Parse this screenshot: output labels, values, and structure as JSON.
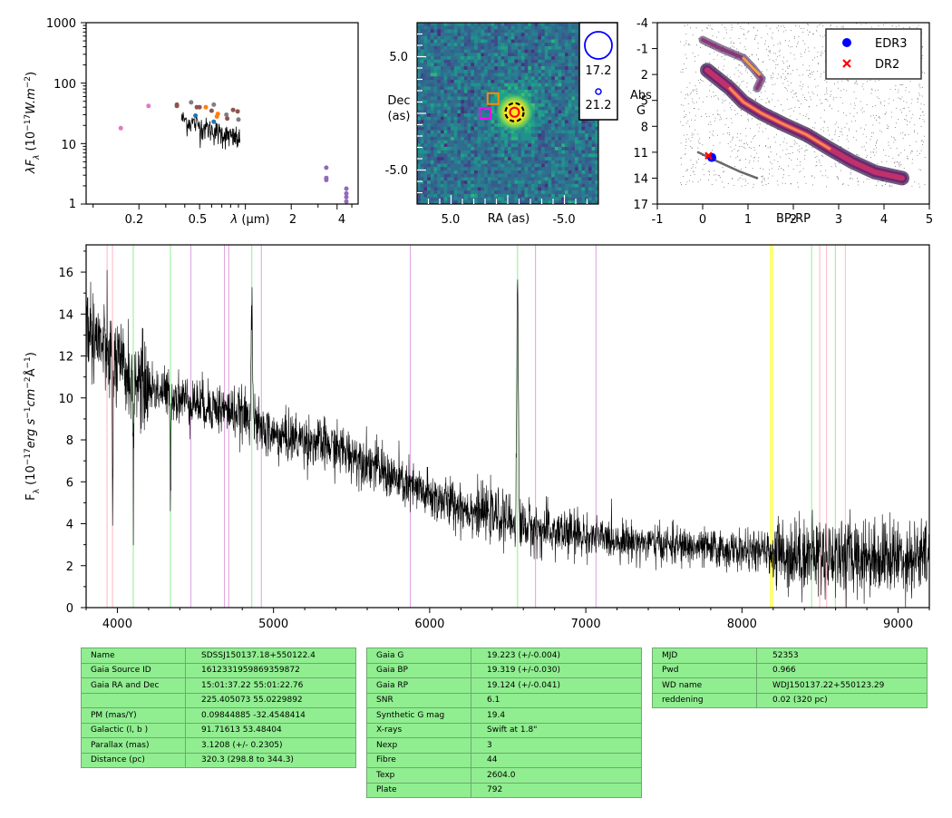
{
  "colors": {
    "spectrum": "#000000",
    "table_bg": "#90ee90",
    "edr3": "#0000ff",
    "dr2": "#ff0000",
    "sed_blue": "#1f77b4",
    "sed_orange": "#ff7f0e",
    "sed_brown": "#8c564b",
    "sed_pink": "#e377c2",
    "sed_purple": "#9467bd",
    "sed_gray": "#7f7f7f",
    "line_pink": "#ffb6c1",
    "line_green": "#90ee90",
    "line_violet": "#dda0dd",
    "line_yellow": "#ffff00"
  },
  "chart_data": [
    {
      "type": "scatter",
      "name": "sed",
      "xlabel": "λ (μm)",
      "ylabel": "λF_λ (10^-17 W.m^-2)",
      "yscale": "log",
      "xscale": "log",
      "xlim": [
        0.09,
        5.5
      ],
      "ylim": [
        1,
        1000
      ],
      "ytick_labels": [
        "1",
        "10",
        "100",
        "1000"
      ],
      "xtick_labels": [
        "0.2",
        "0.5",
        "λ (μm)",
        "2",
        "4"
      ],
      "points": [
        {
          "x": 0.152,
          "y": 18,
          "color": "#e377c2"
        },
        {
          "x": 0.231,
          "y": 42,
          "color": "#e377c2"
        },
        {
          "x": 0.355,
          "y": 42,
          "color": "#8c564b"
        },
        {
          "x": 0.355,
          "y": 44,
          "color": "#8c564b"
        },
        {
          "x": 0.44,
          "y": 48,
          "color": "#7f7f7f"
        },
        {
          "x": 0.47,
          "y": 29,
          "color": "#1f77b4"
        },
        {
          "x": 0.48,
          "y": 40,
          "color": "#8c564b"
        },
        {
          "x": 0.5,
          "y": 40,
          "color": "#8c564b"
        },
        {
          "x": 0.55,
          "y": 40,
          "color": "#ff7f0e"
        },
        {
          "x": 0.6,
          "y": 35,
          "color": "#8c564b"
        },
        {
          "x": 0.62,
          "y": 23,
          "color": "#1f77b4"
        },
        {
          "x": 0.65,
          "y": 28,
          "color": "#ff7f0e"
        },
        {
          "x": 0.66,
          "y": 31,
          "color": "#ff7f0e"
        },
        {
          "x": 0.62,
          "y": 44,
          "color": "#7f7f7f"
        },
        {
          "x": 0.75,
          "y": 30,
          "color": "#7f7f7f"
        },
        {
          "x": 0.76,
          "y": 26,
          "color": "#8c564b"
        },
        {
          "x": 0.83,
          "y": 36,
          "color": "#8c564b"
        },
        {
          "x": 0.89,
          "y": 34,
          "color": "#8c564b"
        },
        {
          "x": 0.9,
          "y": 25,
          "color": "#7f7f7f"
        },
        {
          "x": 3.4,
          "y": 4,
          "color": "#9467bd"
        },
        {
          "x": 3.4,
          "y": 2.7,
          "color": "#9467bd"
        },
        {
          "x": 3.4,
          "y": 2.5,
          "color": "#9467bd"
        },
        {
          "x": 4.6,
          "y": 1.8,
          "color": "#9467bd"
        },
        {
          "x": 4.6,
          "y": 1.5,
          "color": "#9467bd"
        },
        {
          "x": 4.6,
          "y": 1.3,
          "color": "#9467bd"
        },
        {
          "x": 4.6,
          "y": 1.1,
          "color": "#9467bd"
        }
      ],
      "spectrum_range_um": [
        0.38,
        0.92
      ]
    },
    {
      "type": "heatmap",
      "name": "image_cutout",
      "xlabel": "RA (as)",
      "ylabel": "Dec (as)",
      "xtick_labels": [
        "5.0",
        "-5.0"
      ],
      "ytick_labels": [
        "5.0",
        "-5.0"
      ],
      "xlim": [
        8,
        -8
      ],
      "ylim": [
        -8,
        8
      ],
      "source_center": [
        -0.6,
        0.1
      ],
      "square_markers": [
        {
          "x": 1.3,
          "y": 1.3,
          "color": "#ff8c00"
        },
        {
          "x": 2.0,
          "y": 0.0,
          "color": "#ff00ff"
        }
      ],
      "legend_sizes": [
        "17.2",
        "21.2"
      ]
    },
    {
      "type": "scatter",
      "name": "hr_diagram",
      "xlabel": "BP-RP",
      "ylabel": "Abs G",
      "xlim": [
        -1,
        5
      ],
      "ylim": [
        17,
        -4
      ],
      "xtick_labels": [
        "-1",
        "0",
        "1",
        "2",
        "3",
        "4",
        "5"
      ],
      "ytick_labels": [
        "-4",
        "-1",
        "2",
        "5",
        "8",
        "11",
        "14",
        "17"
      ],
      "series": [
        {
          "name": "EDR3",
          "x": [
            0.2
          ],
          "y": [
            11.6
          ],
          "marker": "circle",
          "color": "#0000ff"
        },
        {
          "name": "DR2",
          "x": [
            0.13
          ],
          "y": [
            11.4
          ],
          "marker": "x",
          "color": "#ff0000"
        }
      ],
      "legend_position": "top-right"
    },
    {
      "type": "line",
      "name": "spectrum",
      "xlabel": "",
      "ylabel": "F_λ (10^-17 erg s^-1 cm^-2 Å^-1)",
      "xlim": [
        3800,
        9200
      ],
      "ylim": [
        0,
        17.3
      ],
      "xtick_labels": [
        "4000",
        "5000",
        "6000",
        "7000",
        "8000",
        "9000"
      ],
      "ytick_labels": [
        "0",
        "2",
        "4",
        "6",
        "8",
        "10",
        "12",
        "14",
        "16"
      ],
      "continuum": [
        {
          "x": 3800,
          "y": 13.5
        },
        {
          "x": 3900,
          "y": 12.5
        },
        {
          "x": 4000,
          "y": 11.5
        },
        {
          "x": 4200,
          "y": 10.5
        },
        {
          "x": 4400,
          "y": 10.0
        },
        {
          "x": 4600,
          "y": 9.6
        },
        {
          "x": 4800,
          "y": 9.2
        },
        {
          "x": 4900,
          "y": 8.6
        },
        {
          "x": 5000,
          "y": 8.2
        },
        {
          "x": 5200,
          "y": 8.0
        },
        {
          "x": 5400,
          "y": 7.6
        },
        {
          "x": 5600,
          "y": 7.0
        },
        {
          "x": 5800,
          "y": 6.0
        },
        {
          "x": 6000,
          "y": 5.3
        },
        {
          "x": 6300,
          "y": 4.6
        },
        {
          "x": 6500,
          "y": 4.2
        },
        {
          "x": 6700,
          "y": 3.7
        },
        {
          "x": 7000,
          "y": 3.4
        },
        {
          "x": 7500,
          "y": 3.0
        },
        {
          "x": 8000,
          "y": 2.7
        },
        {
          "x": 8500,
          "y": 2.5
        },
        {
          "x": 9000,
          "y": 2.4
        },
        {
          "x": 9200,
          "y": 2.4
        }
      ],
      "emission_lines": [
        {
          "x": 4861,
          "y": 15.0
        },
        {
          "x": 6563,
          "y": 15.7
        }
      ],
      "absorption_dips": [
        {
          "x": 3970,
          "y": 5.1
        },
        {
          "x": 4102,
          "y": 5.2
        },
        {
          "x": 4340,
          "y": 5.5
        }
      ],
      "vlines": [
        {
          "x": 3934,
          "color": "#ffb6c1"
        },
        {
          "x": 3969,
          "color": "#ffb6c1"
        },
        {
          "x": 4102,
          "color": "#90ee90"
        },
        {
          "x": 4340,
          "color": "#90ee90"
        },
        {
          "x": 4471,
          "color": "#dda0dd"
        },
        {
          "x": 4686,
          "color": "#dda0dd"
        },
        {
          "x": 4713,
          "color": "#dda0dd"
        },
        {
          "x": 4861,
          "color": "#90ee90"
        },
        {
          "x": 4922,
          "color": "#dda0dd"
        },
        {
          "x": 5876,
          "color": "#dda0dd"
        },
        {
          "x": 6563,
          "color": "#90ee90"
        },
        {
          "x": 6678,
          "color": "#dda0dd"
        },
        {
          "x": 7065,
          "color": "#dda0dd"
        },
        {
          "x": 8183,
          "color": "#ffff00"
        },
        {
          "x": 8195,
          "color": "#ffff00"
        },
        {
          "x": 8446,
          "color": "#90ee90"
        },
        {
          "x": 8498,
          "color": "#ffb6c1"
        },
        {
          "x": 8542,
          "color": "#ffb6c1"
        },
        {
          "x": 8598,
          "color": "#90ee90"
        },
        {
          "x": 8662,
          "color": "#ffb6c1"
        }
      ]
    }
  ],
  "labels": {
    "sed_ylabel": "λF",
    "sed_ylabel_sub": "λ",
    "sed_ylabel_rest": " (10",
    "sed_ylabel_exp": "−17",
    "sed_ylabel_unit": "W.m",
    "sed_ylabel_exp2": "−2",
    "img_ylabel_1": "Dec",
    "img_ylabel_2": "(as)",
    "img_xlabel": "RA (as)",
    "hr_xlabel": "BP-RP",
    "hr_ylabel_1": "Abs",
    "hr_ylabel_2": "G",
    "spec_ylabel": "F",
    "spec_ylabel_sub": "λ",
    "spec_ylabel_rest": " (10",
    "spec_ylabel_exp1": "−17",
    "spec_ylabel_unit1": "erg s",
    "spec_ylabel_exp2": "−1",
    "spec_ylabel_unit2": "cm",
    "spec_ylabel_exp3": "−2",
    "spec_ylabel_unit3": "Å",
    "spec_ylabel_exp4": "−1",
    "spec_ylabel_close": ")",
    "sed_xlabel_lambda": "λ",
    "sed_xlabel_unit": " (μm)"
  },
  "tables": {
    "table1": [
      {
        "key": "Name",
        "value": "SDSSJ150137.18+550122.4"
      },
      {
        "key": "Gaia Source ID",
        "value": "1612331959869359872"
      },
      {
        "key": "Gaia RA and Dec",
        "value": "15:01:37.22    55:01:22.76"
      },
      {
        "key": "",
        "value": "225.405073    55.0229892"
      },
      {
        "key": "PM (mas/Y)",
        "value": "0.09844885    -32.4548414"
      },
      {
        "key": "Galactic (l, b )",
        "value": "91.71613    53.48404"
      },
      {
        "key": "Parallax (mas)",
        "value": "3.1208 (+/- 0.2305)"
      },
      {
        "key": "Distance (pc)",
        "value": "320.3 (298.8 to 344.3)"
      }
    ],
    "table2": [
      {
        "key": "Gaia G",
        "value": "19.223 (+/-0.004)"
      },
      {
        "key": "Gaia BP",
        "value": "19.319 (+/-0.030)"
      },
      {
        "key": "Gaia RP",
        "value": "19.124 (+/-0.041)"
      },
      {
        "key": "SNR",
        "value": "6.1"
      },
      {
        "key": "Synthetic G mag",
        "value": "19.4"
      },
      {
        "key": "X-rays",
        "value": "Swift at 1.8\""
      },
      {
        "key": "Nexp",
        "value": "3"
      },
      {
        "key": "Fibre",
        "value": "44"
      },
      {
        "key": "Texp",
        "value": "2604.0"
      },
      {
        "key": "Plate",
        "value": "792"
      }
    ],
    "table3": [
      {
        "key": "MJD",
        "value": "52353"
      },
      {
        "key": "Pwd",
        "value": "0.966"
      },
      {
        "key": "WD name",
        "value": "WDJ150137.22+550123.29"
      },
      {
        "key": "reddening",
        "value": "0.02 (320 pc)"
      }
    ]
  }
}
